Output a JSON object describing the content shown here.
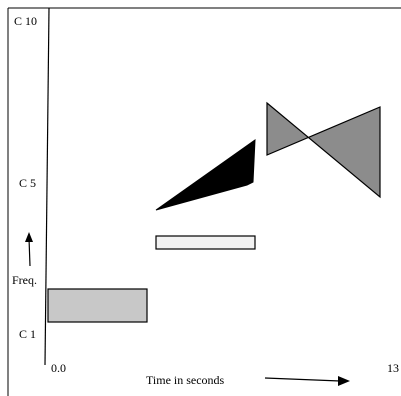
{
  "y_axis": {
    "top_label": "C 10",
    "mid_label": "C 5",
    "bottom_label": "C 1",
    "axis_title": "Freq."
  },
  "x_axis": {
    "start_label": "0.0",
    "end_label": "13",
    "axis_title": "Time in seconds"
  },
  "colors": {
    "light_gray": "#c8c8c8",
    "very_light_gray": "#f2f2f2",
    "black": "#000000",
    "mid_gray": "#8c8c8c",
    "line": "#000000"
  }
}
